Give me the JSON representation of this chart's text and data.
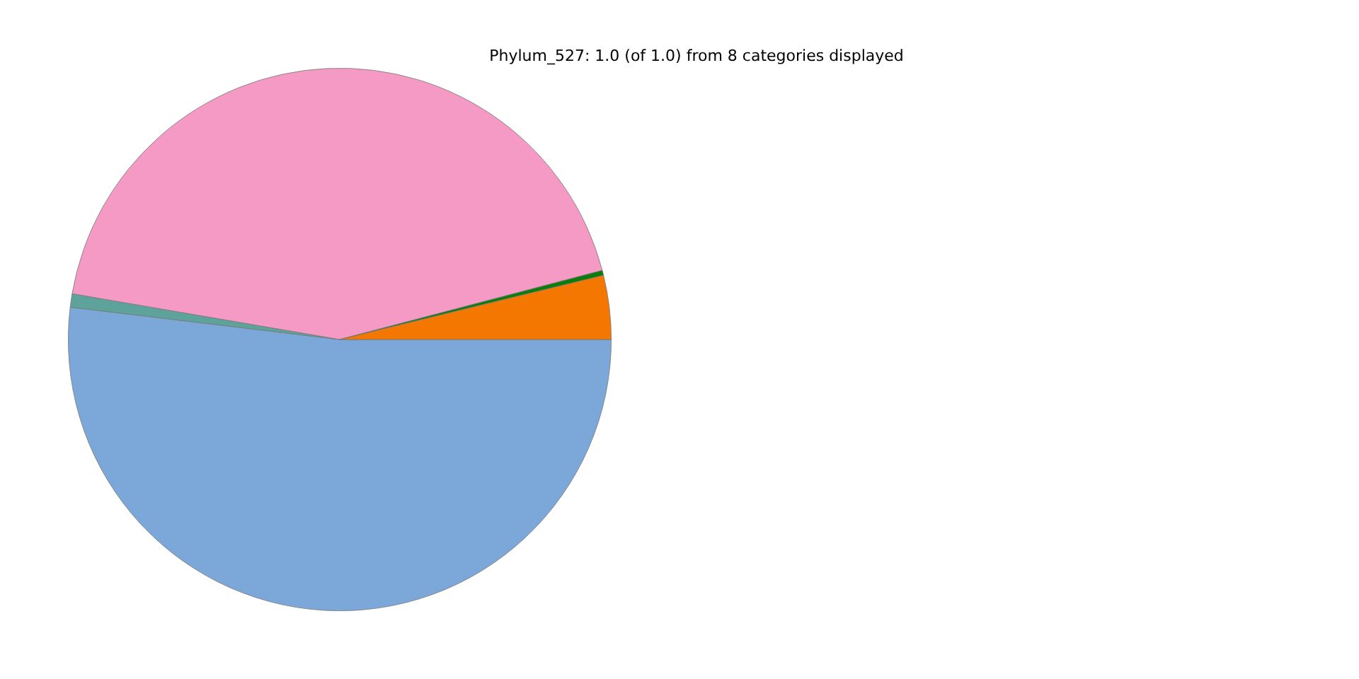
{
  "chart_data": {
    "type": "pie",
    "title": "Phylum_527: 1.0 (of 1.0) from 8 categories displayed",
    "categories": [
      null,
      null,
      null,
      null,
      null
    ],
    "values": [
      51.9,
      0.8,
      43.2,
      0.3,
      3.8
    ],
    "colors": [
      "#7ca8d9",
      "#5ea39b",
      "#f49ac4",
      "#0c7c0c",
      "#f47702"
    ],
    "legend": false
  }
}
